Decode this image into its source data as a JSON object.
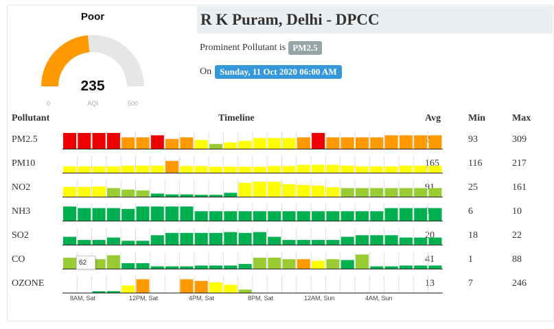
{
  "gauge": {
    "status": "Poor",
    "value": "235",
    "unit": "AQI",
    "min": "0",
    "max": "500",
    "min_num": 0,
    "max_num": 500,
    "value_num": 235,
    "fill_color": "#ff9900",
    "track_color": "#e6e6e6"
  },
  "station": {
    "title": "R K Puram, Delhi - DPCC",
    "prominent_prefix": "Prominent Pollutant is",
    "prominent_value": "PM2.5",
    "on_prefix": "On",
    "datetime": "Sunday, 11 Oct 2020 06:00 AM"
  },
  "table": {
    "headers": {
      "pollutant": "Pollutant",
      "timeline": "Timeline",
      "avg": "Avg",
      "min": "Min",
      "max": "Max"
    },
    "rows": [
      {
        "name": "PM2.5",
        "avg": "235",
        "min": "93",
        "max": "309",
        "levels": [
          1,
          1,
          1,
          1,
          0.72,
          0.72,
          0.85,
          0.62,
          0.72,
          0.55,
          0.3,
          0.4,
          0.5,
          0.68,
          0.68,
          0.68,
          0.72,
          1,
          0.72,
          0.72,
          0.72,
          0.72,
          0.85,
          0.85,
          0.85,
          0.85
        ],
        "colors": [
          "#ee0000",
          "#ee0000",
          "#ee0000",
          "#ee0000",
          "#ff9900",
          "#ff9900",
          "#ee0000",
          "#ff9900",
          "#ff9900",
          "#ffff00",
          "#99cc33",
          "#ffff00",
          "#ffff00",
          "#ffff00",
          "#ffff00",
          "#ffff00",
          "#ff9900",
          "#ee0000",
          "#ff9900",
          "#ff9900",
          "#ff9900",
          "#ff9900",
          "#ff9900",
          "#ff9900",
          "#ff9900",
          "#ff9900"
        ]
      },
      {
        "name": "PM10",
        "avg": "165",
        "min": "116",
        "max": "217",
        "levels": [
          0.4,
          0.4,
          0.4,
          0.4,
          0.45,
          0.45,
          0.45,
          0.75,
          0.42,
          0.42,
          0.38,
          0.38,
          0.38,
          0.38,
          0.42,
          0.42,
          0.5,
          0.5,
          0.5,
          0.45,
          0.4,
          0.4,
          0.4,
          0.45,
          0.45,
          0.45
        ],
        "colors": [
          "#ffff00",
          "#ffff00",
          "#ffff00",
          "#ffff00",
          "#ffff00",
          "#ffff00",
          "#ffff00",
          "#ff9900",
          "#ffff00",
          "#ffff00",
          "#ffff00",
          "#ffff00",
          "#ffff00",
          "#ffff00",
          "#ffff00",
          "#ffff00",
          "#ffff00",
          "#ffff00",
          "#ffff00",
          "#ffff00",
          "#ffff00",
          "#ffff00",
          "#ffff00",
          "#ffff00",
          "#ffff00",
          "#ffff00"
        ]
      },
      {
        "name": "NO2",
        "avg": "91",
        "min": "25",
        "max": "161",
        "levels": [
          0.62,
          0.62,
          0.65,
          0.55,
          0.45,
          0.4,
          0.2,
          0.15,
          0.15,
          0.12,
          0.12,
          0.25,
          0.88,
          0.95,
          0.95,
          0.8,
          0.75,
          0.7,
          0.6,
          0.55,
          0.55,
          0.55,
          0.55,
          0.55,
          0.55,
          0.55
        ],
        "colors": [
          "#ffff00",
          "#ffff00",
          "#ffff00",
          "#99cc33",
          "#99cc33",
          "#99cc33",
          "#00b050",
          "#00b050",
          "#00b050",
          "#00b050",
          "#00b050",
          "#00b050",
          "#ffff00",
          "#ffff00",
          "#ffff00",
          "#ffff00",
          "#ffff00",
          "#ffff00",
          "#ffff00",
          "#99cc33",
          "#99cc33",
          "#99cc33",
          "#99cc33",
          "#99cc33",
          "#99cc33",
          "#99cc33"
        ]
      },
      {
        "name": "NH3",
        "avg": "8",
        "min": "6",
        "max": "10",
        "levels": [
          0.9,
          0.8,
          0.8,
          0.8,
          0.75,
          0.9,
          0.9,
          0.9,
          0.9,
          0.6,
          0.6,
          0.6,
          0.6,
          0.6,
          0.6,
          0.6,
          0.6,
          0.6,
          0.6,
          0.6,
          0.6,
          0.6,
          0.8,
          0.8,
          0.8,
          0.8
        ],
        "colors": [
          "#00b050",
          "#00b050",
          "#00b050",
          "#00b050",
          "#00b050",
          "#00b050",
          "#00b050",
          "#00b050",
          "#00b050",
          "#00b050",
          "#00b050",
          "#00b050",
          "#00b050",
          "#00b050",
          "#00b050",
          "#00b050",
          "#00b050",
          "#00b050",
          "#00b050",
          "#00b050",
          "#00b050",
          "#00b050",
          "#00b050",
          "#00b050",
          "#00b050",
          "#00b050"
        ]
      },
      {
        "name": "SO2",
        "avg": "20",
        "min": "18",
        "max": "22",
        "levels": [
          0.5,
          0.3,
          0.3,
          0.45,
          0.25,
          0.25,
          0.6,
          0.75,
          0.75,
          0.75,
          0.75,
          0.8,
          0.75,
          0.8,
          0.5,
          0.3,
          0.3,
          0.3,
          0.3,
          0.5,
          0.6,
          0.6,
          0.6,
          0.45,
          0.45,
          0.45
        ],
        "colors": [
          "#00b050",
          "#00b050",
          "#00b050",
          "#00b050",
          "#00b050",
          "#00b050",
          "#00b050",
          "#00b050",
          "#00b050",
          "#00b050",
          "#00b050",
          "#00b050",
          "#00b050",
          "#00b050",
          "#00b050",
          "#00b050",
          "#00b050",
          "#00b050",
          "#00b050",
          "#00b050",
          "#00b050",
          "#00b050",
          "#00b050",
          "#00b050",
          "#00b050",
          "#00b050"
        ]
      },
      {
        "name": "CO",
        "avg": "41",
        "min": "1",
        "max": "88",
        "levels": [
          0.7,
          0.0,
          0.6,
          0.85,
          0.35,
          0.35,
          0.15,
          0.15,
          0.15,
          0.2,
          0.2,
          0.2,
          0.3,
          0.7,
          0.7,
          0.6,
          0.6,
          0.5,
          0.6,
          0.55,
          0.9,
          0.15,
          0.15,
          0.2,
          0.2,
          0.2
        ],
        "colors": [
          "#99cc33",
          "#ffffff",
          "#99cc33",
          "#99cc33",
          "#00b050",
          "#00b050",
          "#00b050",
          "#00b050",
          "#00b050",
          "#00b050",
          "#00b050",
          "#00b050",
          "#00b050",
          "#99cc33",
          "#99cc33",
          "#99cc33",
          "#ff9900",
          "#ffff00",
          "#99cc33",
          "#00b050",
          "#99cc33",
          "#00b050",
          "#00b050",
          "#00b050",
          "#00b050",
          "#00b050"
        ]
      },
      {
        "name": "OZONE",
        "avg": "13",
        "min": "7",
        "max": "246",
        "levels": [
          0,
          0,
          0.05,
          0.1,
          0.45,
          0.85,
          0,
          0,
          0.85,
          0.75,
          0.65,
          0.5,
          0.2,
          0,
          0,
          0,
          0,
          0,
          0,
          0,
          0,
          0,
          0,
          0,
          0,
          0
        ],
        "colors": [
          "#00b050",
          "#00b050",
          "#00b050",
          "#00b050",
          "#ffff00",
          "#ff9900",
          "#00b050",
          "#00b050",
          "#ff9900",
          "#ff9900",
          "#ffff00",
          "#ffff00",
          "#99cc33",
          "#00b050",
          "#00b050",
          "#00b050",
          "#00b050",
          "#00b050",
          "#00b050",
          "#00b050",
          "#00b050",
          "#00b050",
          "#00b050",
          "#00b050",
          "#00b050",
          "#00b050"
        ]
      }
    ]
  },
  "tooltip": {
    "value": "62"
  },
  "x_ticks": [
    "8AM, Sat",
    "12PM, Sat",
    "4PM, Sat",
    "8PM, Sat",
    "12AM, Sun",
    "4AM, Sun"
  ]
}
